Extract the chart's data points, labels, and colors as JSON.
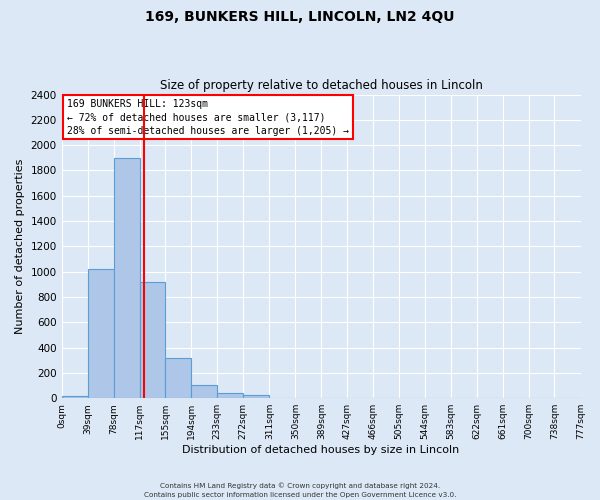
{
  "title": "169, BUNKERS HILL, LINCOLN, LN2 4QU",
  "subtitle": "Size of property relative to detached houses in Lincoln",
  "xlabel": "Distribution of detached houses by size in Lincoln",
  "ylabel": "Number of detached properties",
  "bin_edges": [
    0,
    39,
    78,
    117,
    155,
    194,
    233,
    272,
    311,
    350,
    389,
    427,
    466,
    505,
    544,
    583,
    622,
    661,
    700,
    738,
    777
  ],
  "bin_labels": [
    "0sqm",
    "39sqm",
    "78sqm",
    "117sqm",
    "155sqm",
    "194sqm",
    "233sqm",
    "272sqm",
    "311sqm",
    "350sqm",
    "389sqm",
    "427sqm",
    "466sqm",
    "505sqm",
    "544sqm",
    "583sqm",
    "622sqm",
    "661sqm",
    "700sqm",
    "738sqm",
    "777sqm"
  ],
  "bar_heights": [
    20,
    1020,
    1900,
    920,
    320,
    105,
    45,
    25,
    0,
    0,
    0,
    0,
    0,
    0,
    0,
    0,
    0,
    0,
    0,
    0
  ],
  "bar_color": "#aec6e8",
  "bar_edge_color": "#5a9fd4",
  "vline_x": 123,
  "vline_color": "red",
  "ylim": [
    0,
    2400
  ],
  "yticks": [
    0,
    200,
    400,
    600,
    800,
    1000,
    1200,
    1400,
    1600,
    1800,
    2000,
    2200,
    2400
  ],
  "annotation_title": "169 BUNKERS HILL: 123sqm",
  "annotation_line1": "← 72% of detached houses are smaller (3,117)",
  "annotation_line2": "28% of semi-detached houses are larger (1,205) →",
  "annotation_box_color": "#ffffff",
  "annotation_box_edge": "red",
  "footer1": "Contains HM Land Registry data © Crown copyright and database right 2024.",
  "footer2": "Contains public sector information licensed under the Open Government Licence v3.0.",
  "background_color": "#dce8f5",
  "grid_color": "#ffffff"
}
